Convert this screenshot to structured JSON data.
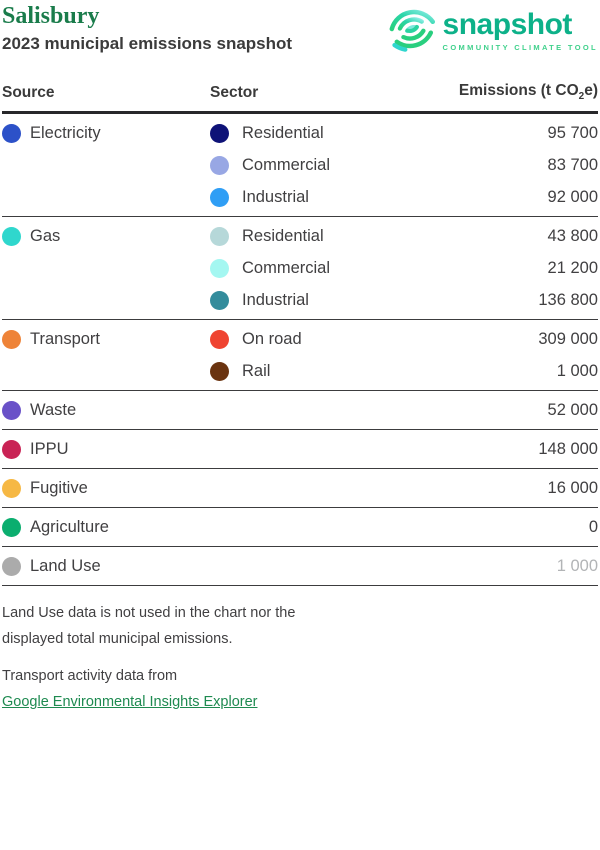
{
  "header": {
    "municipality": "Salisbury",
    "subtitle": "2023 municipal emissions snapshot",
    "municipality_color": "#1a7c4b"
  },
  "logo": {
    "icon": "snapshot-arcs-mark",
    "wordmark": "snapshot",
    "tagline": "COMMUNITY CLIMATE TOOL",
    "wordmark_color": "#0db189",
    "tagline_color": "#40d18c"
  },
  "table": {
    "columns": {
      "source": "Source",
      "sector": "Sector",
      "emissions_prefix": "Emissions (t CO",
      "emissions_sub": "2",
      "emissions_suffix": "e)"
    },
    "groups": [
      {
        "source": "Electricity",
        "color": "#2c51c8",
        "sectors": [
          {
            "label": "Residential",
            "color": "#0e1277",
            "value": "95 700"
          },
          {
            "label": "Commercial",
            "color": "#98a7e4",
            "value": "83 700"
          },
          {
            "label": "Industrial",
            "color": "#2f9ef5",
            "value": "92 000"
          }
        ]
      },
      {
        "source": "Gas",
        "color": "#2fd7cd",
        "sectors": [
          {
            "label": "Residential",
            "color": "#b6d8d9",
            "value": "43 800"
          },
          {
            "label": "Commercial",
            "color": "#a4f7f1",
            "value": "21 200"
          },
          {
            "label": "Industrial",
            "color": "#338c9c",
            "value": "136 800"
          }
        ]
      },
      {
        "source": "Transport",
        "color": "#ee8338",
        "sectors": [
          {
            "label": "On road",
            "color": "#ef4431",
            "value": "309 000"
          },
          {
            "label": "Rail",
            "color": "#6a330f",
            "value": "1 000"
          }
        ]
      },
      {
        "source": "Waste",
        "color": "#6951c8",
        "value": "52 000"
      },
      {
        "source": "IPPU",
        "color": "#c92355",
        "value": "148 000"
      },
      {
        "source": "Fugitive",
        "color": "#f6b844",
        "value": "16 000"
      },
      {
        "source": "Agriculture",
        "color": "#0bae6f",
        "value": "0"
      },
      {
        "source": "Land Use",
        "color": "#ababab",
        "value": "1 000",
        "muted": true
      }
    ]
  },
  "notes": {
    "land_use": "Land Use data is not used in the chart nor the displayed total municipal emissions.",
    "transport": "Transport activity data from",
    "transport_link": "Google Environmental Insights Explorer"
  }
}
